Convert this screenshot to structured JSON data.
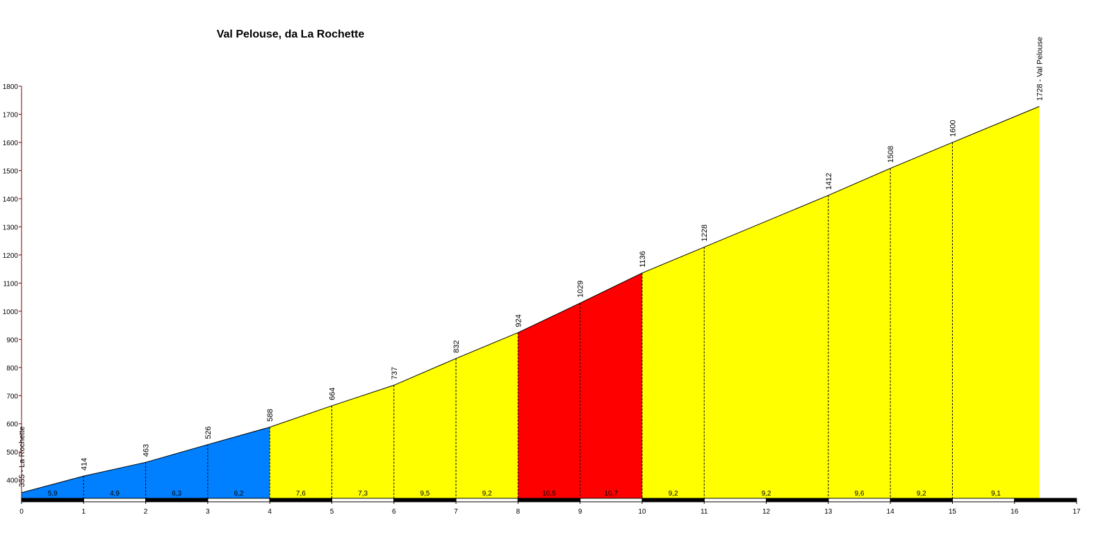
{
  "chart_data": {
    "type": "profile",
    "title": "Val Pelouse, da La Rochette",
    "x": [
      0,
      1,
      2,
      3,
      4,
      5,
      6,
      7,
      8,
      9,
      10,
      11,
      13,
      14,
      15,
      16.4
    ],
    "values": [
      355,
      414,
      463,
      526,
      588,
      664,
      737,
      832,
      924,
      1029,
      1136,
      1228,
      1412,
      1508,
      1600,
      1728
    ],
    "value_labels": [
      "355 - La Rochette",
      "414",
      "463",
      "526",
      "588",
      "664",
      "737",
      "832",
      "924",
      "1029",
      "1136",
      "1228",
      "1412",
      "1508",
      "1600",
      "1728 - Val Pelouse"
    ],
    "gradient_labels": [
      "5,9",
      "4,9",
      "6,3",
      "6,2",
      "7,6",
      "7,3",
      "9,5",
      "9,2",
      "10,5",
      "10,7",
      "9,2",
      "9,2",
      "9,6",
      "9,2",
      "9,1"
    ],
    "segment_colors": [
      "#0080ff",
      "#0080ff",
      "#0080ff",
      "#0080ff",
      "#ffff00",
      "#ffff00",
      "#ffff00",
      "#ffff00",
      "#ff0000",
      "#ff0000",
      "#ffff00",
      "#ffff00",
      "#ffff00",
      "#ffff00",
      "#ffff00"
    ],
    "xlim": [
      0,
      17
    ],
    "xticks": [
      0,
      1,
      2,
      3,
      4,
      5,
      6,
      7,
      8,
      9,
      10,
      11,
      12,
      13,
      14,
      15,
      16,
      17
    ],
    "ylim": [
      335,
      1800
    ],
    "yticks": [
      400,
      500,
      600,
      700,
      800,
      900,
      1000,
      1100,
      1200,
      1300,
      1400,
      1500,
      1600,
      1700,
      1800
    ]
  }
}
